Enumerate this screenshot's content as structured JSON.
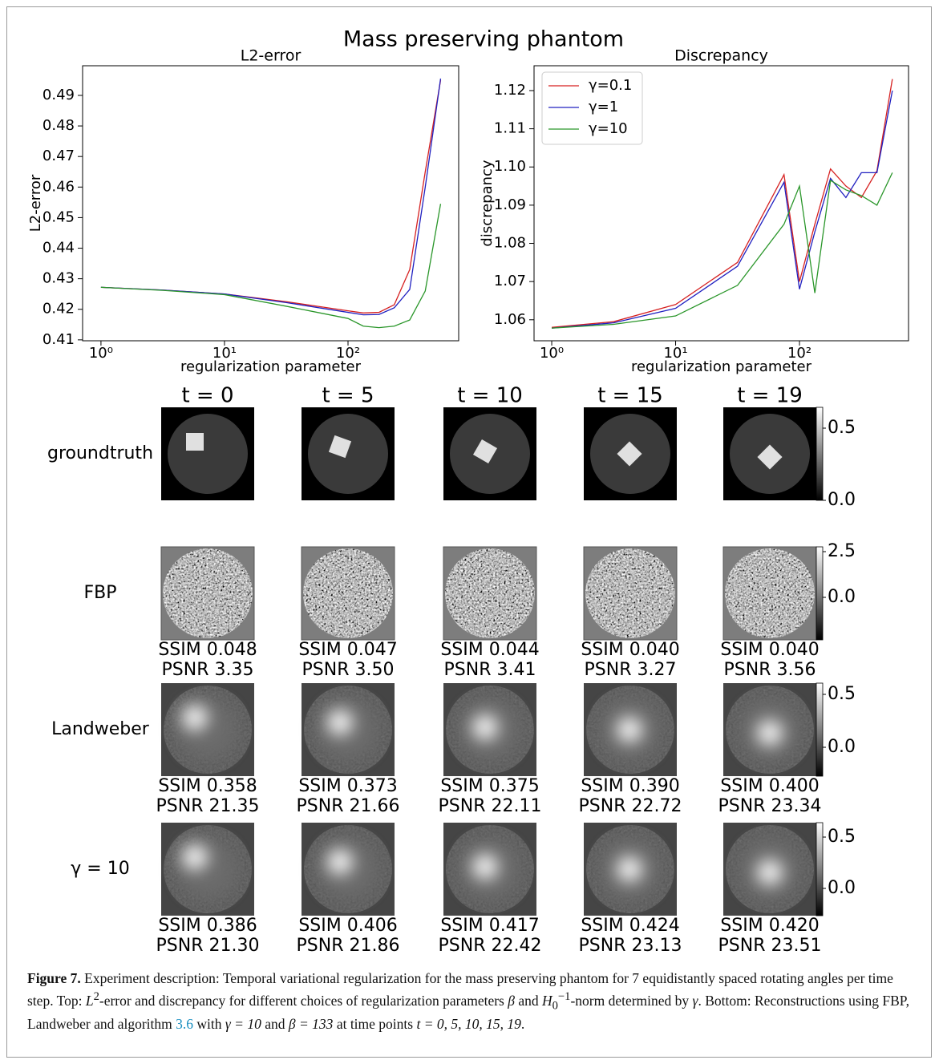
{
  "title": "Mass preserving phantom",
  "chart_data": [
    {
      "type": "line",
      "title": "L2-error",
      "x_label": "regularization parameter",
      "y_label": "L2-error",
      "xscale": "log",
      "xlim": [
        0.71,
        787
      ],
      "ylim": [
        0.4097,
        0.4997
      ],
      "xticks": [
        {
          "value": 1,
          "label": "10⁰"
        },
        {
          "value": 10,
          "label": "10¹"
        },
        {
          "value": 100,
          "label": "10²"
        }
      ],
      "yticks": [
        0.41,
        0.42,
        0.43,
        0.44,
        0.45,
        0.46,
        0.47,
        0.48,
        0.49
      ],
      "x": [
        1,
        3.16,
        10,
        31.6,
        100,
        133,
        178,
        237,
        316,
        422,
        562
      ],
      "series": [
        {
          "name": "γ=0.1",
          "color": "#d62020",
          "values": [
            0.4272,
            0.4263,
            0.425,
            0.4225,
            0.4195,
            0.4188,
            0.419,
            0.4215,
            0.433,
            0.465,
            0.495
          ]
        },
        {
          "name": "γ=1",
          "color": "#2020c0",
          "values": [
            0.4272,
            0.4263,
            0.425,
            0.4222,
            0.419,
            0.4182,
            0.4183,
            0.4205,
            0.4265,
            0.46,
            0.4955
          ]
        },
        {
          "name": "γ=10",
          "color": "#2a962a",
          "values": [
            0.4272,
            0.4262,
            0.4248,
            0.421,
            0.417,
            0.4145,
            0.414,
            0.4145,
            0.4165,
            0.426,
            0.4545
          ]
        }
      ]
    },
    {
      "type": "line",
      "title": "Discrepancy",
      "x_label": "regularization parameter",
      "y_label": "discrepancy",
      "xscale": "log",
      "xlim": [
        0.72,
        759
      ],
      "ylim": [
        1.0545,
        1.1265
      ],
      "legend": "upper left",
      "xticks": [
        {
          "value": 1,
          "label": "10⁰"
        },
        {
          "value": 10,
          "label": "10¹"
        },
        {
          "value": 100,
          "label": "10²"
        }
      ],
      "yticks": [
        1.06,
        1.07,
        1.08,
        1.09,
        {
          "value": 1.1,
          "label": "1.10"
        },
        1.11,
        1.12
      ],
      "x": [
        1,
        3.16,
        10,
        31.6,
        75,
        100,
        133,
        178,
        237,
        316,
        422,
        562
      ],
      "series": [
        {
          "name": "γ=0.1",
          "color": "#d62020",
          "values": [
            1.058,
            1.0595,
            1.064,
            1.075,
            1.098,
            1.07,
            1.085,
            1.0995,
            1.095,
            1.092,
            1.099,
            1.123
          ]
        },
        {
          "name": "γ=1",
          "color": "#2020c0",
          "values": [
            1.0578,
            1.0592,
            1.063,
            1.074,
            1.096,
            1.068,
            1.083,
            1.097,
            1.092,
            1.0985,
            1.0985,
            1.12
          ]
        },
        {
          "name": "γ=10",
          "color": "#2a962a",
          "values": [
            1.0578,
            1.0588,
            1.061,
            1.069,
            1.085,
            1.095,
            1.067,
            1.0965,
            1.094,
            1.0925,
            1.09,
            1.0985
          ]
        }
      ]
    }
  ],
  "grid": {
    "columns": [
      "t = 0",
      "t = 5",
      "t = 10",
      "t = 15",
      "t = 19"
    ],
    "rows": [
      {
        "label": "groundtruth",
        "colorbar": [
          "0.5",
          "0.0"
        ]
      },
      {
        "label": "FBP",
        "colorbar": [
          "2.5",
          "0.0"
        ],
        "metrics": [
          [
            "SSIM 0.048",
            "PSNR 3.35"
          ],
          [
            "SSIM 0.047",
            "PSNR 3.50"
          ],
          [
            "SSIM 0.044",
            "PSNR 3.41"
          ],
          [
            "SSIM 0.040",
            "PSNR 3.27"
          ],
          [
            "SSIM 0.040",
            "PSNR 3.56"
          ]
        ]
      },
      {
        "label": "Landweber",
        "colorbar": [
          "0.5",
          "0.0"
        ],
        "metrics": [
          [
            "SSIM 0.358",
            "PSNR 21.35"
          ],
          [
            "SSIM 0.373",
            "PSNR 21.66"
          ],
          [
            "SSIM 0.375",
            "PSNR 22.11"
          ],
          [
            "SSIM 0.390",
            "PSNR 22.72"
          ],
          [
            "SSIM 0.400",
            "PSNR 23.34"
          ]
        ]
      },
      {
        "label": "γ = 10",
        "colorbar": [
          "0.5",
          "0.0"
        ],
        "metrics": [
          [
            "SSIM 0.386",
            "PSNR 21.30"
          ],
          [
            "SSIM 0.406",
            "PSNR 21.86"
          ],
          [
            "SSIM 0.417",
            "PSNR 22.42"
          ],
          [
            "SSIM 0.424",
            "PSNR 23.13"
          ],
          [
            "SSIM 0.420",
            "PSNR 23.51"
          ]
        ]
      }
    ]
  },
  "caption": {
    "label": "Figure 7.",
    "parts": [
      " Experiment description: Temporal variational regularization for the mass preserving phantom for 7 equidistantly spaced rotating angles per time step. Top: ",
      "L",
      "2",
      "-error and discrepancy for different choices of regularization parameters ",
      "β",
      " and ",
      "H",
      "0",
      "−1",
      "-norm determined by ",
      "γ",
      ". Bottom: Reconstructions using FBP, Landweber and algorithm ",
      "3.6",
      " with ",
      "γ = 10",
      " and ",
      "β = 133",
      " at time points ",
      "t = 0, 5, 10, 15, 19",
      "."
    ]
  }
}
